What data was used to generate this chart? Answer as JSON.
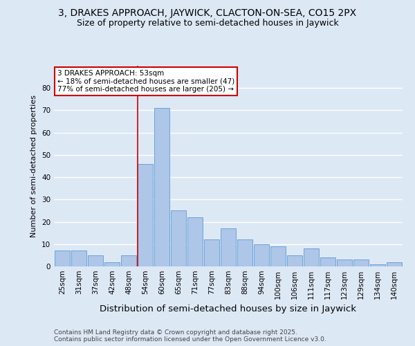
{
  "title1": "3, DRAKES APPROACH, JAYWICK, CLACTON-ON-SEA, CO15 2PX",
  "title2": "Size of property relative to semi-detached houses in Jaywick",
  "xlabel": "Distribution of semi-detached houses by size in Jaywick",
  "ylabel": "Number of semi-detached properties",
  "categories": [
    "25sqm",
    "31sqm",
    "37sqm",
    "42sqm",
    "48sqm",
    "54sqm",
    "60sqm",
    "65sqm",
    "71sqm",
    "77sqm",
    "83sqm",
    "88sqm",
    "94sqm",
    "100sqm",
    "106sqm",
    "111sqm",
    "117sqm",
    "123sqm",
    "129sqm",
    "134sqm",
    "140sqm"
  ],
  "values": [
    7,
    7,
    5,
    2,
    5,
    46,
    71,
    25,
    22,
    12,
    17,
    12,
    10,
    9,
    5,
    8,
    4,
    3,
    3,
    1,
    2
  ],
  "bar_color": "#aec6e8",
  "bar_edge_color": "#5b9bd5",
  "highlight_line_idx": 5,
  "highlight_line_color": "#cc0000",
  "annotation_text": "3 DRAKES APPROACH: 53sqm\n← 18% of semi-detached houses are smaller (47)\n77% of semi-detached houses are larger (205) →",
  "annotation_box_color": "#ffffff",
  "annotation_box_edge": "#cc0000",
  "ylim": [
    0,
    90
  ],
  "yticks": [
    0,
    10,
    20,
    30,
    40,
    50,
    60,
    70,
    80
  ],
  "footer_text": "Contains HM Land Registry data © Crown copyright and database right 2025.\nContains public sector information licensed under the Open Government Licence v3.0.",
  "background_color": "#dde8f5",
  "plot_bg_color": "#dde8f5",
  "grid_color": "#ffffff",
  "title1_fontsize": 10,
  "title2_fontsize": 9,
  "xlabel_fontsize": 9.5,
  "ylabel_fontsize": 8,
  "tick_fontsize": 7.5,
  "annotation_fontsize": 7.5,
  "footer_fontsize": 6.5
}
